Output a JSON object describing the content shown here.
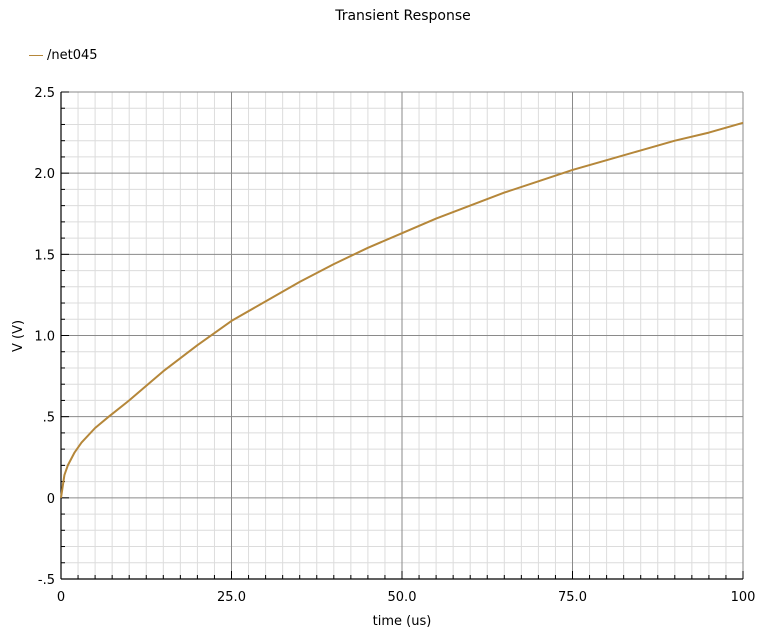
{
  "chart_data": {
    "type": "line",
    "title": "Transient Response",
    "xlabel": "time (us)",
    "ylabel": "V (V)",
    "xlim": [
      0,
      100
    ],
    "ylim": [
      -0.5,
      2.5
    ],
    "x_ticks": [
      0,
      25,
      50,
      75,
      100
    ],
    "x_tick_labels": [
      "0",
      "25.0",
      "50.0",
      "75.0",
      "100"
    ],
    "y_ticks": [
      -0.5,
      0,
      0.5,
      1.0,
      1.5,
      2.0,
      2.5
    ],
    "y_tick_labels": [
      "-.5",
      "0",
      ".5",
      "1.0",
      "1.5",
      "2.0",
      "2.5"
    ],
    "grid": true,
    "legend_position": "top-left",
    "series": [
      {
        "name": "/net045",
        "color": "#b5873a",
        "x": [
          0,
          0.5,
          1,
          2,
          3,
          5,
          7,
          10,
          15,
          20,
          25,
          30,
          35,
          40,
          45,
          50,
          55,
          60,
          65,
          70,
          75,
          80,
          85,
          90,
          95,
          100
        ],
        "y": [
          0,
          0.14,
          0.2,
          0.28,
          0.34,
          0.43,
          0.5,
          0.6,
          0.78,
          0.94,
          1.09,
          1.21,
          1.33,
          1.44,
          1.54,
          1.63,
          1.72,
          1.8,
          1.88,
          1.95,
          2.02,
          2.08,
          2.14,
          2.2,
          2.25,
          2.31
        ]
      }
    ]
  }
}
